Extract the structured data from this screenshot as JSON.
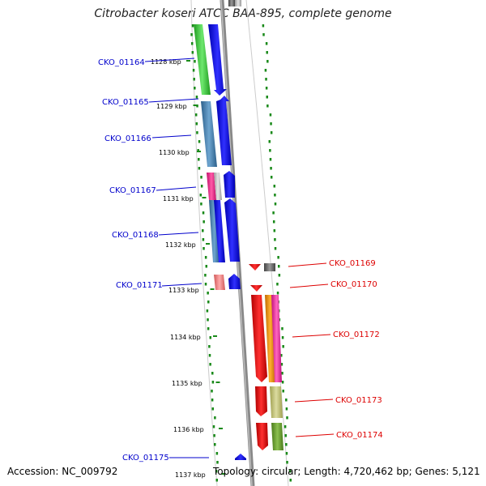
{
  "title": "Citrobacter koseri ATCC BAA-895, complete genome",
  "footer": {
    "accession": "Accession: NC_009792",
    "topology": "Topology: circular; Length: 4,720,462 bp; Genes: 5,121"
  },
  "kbp_ticks": [
    "1128 kbp",
    "1129 kbp",
    "1130 kbp",
    "1131 kbp",
    "1132 kbp",
    "1133 kbp",
    "1134 kbp",
    "1135 kbp",
    "1136 kbp",
    "1137 kbp"
  ],
  "genes_left": [
    {
      "id": "CKO_01164",
      "color": "#0000cc"
    },
    {
      "id": "CKO_01165",
      "color": "#0000cc"
    },
    {
      "id": "CKO_01166",
      "color": "#0000cc"
    },
    {
      "id": "CKO_01167",
      "color": "#0000cc"
    },
    {
      "id": "CKO_01168",
      "color": "#0000cc"
    },
    {
      "id": "CKO_01171",
      "color": "#0000cc"
    },
    {
      "id": "CKO_01175",
      "color": "#0000cc"
    }
  ],
  "genes_right": [
    {
      "id": "CKO_01169",
      "color": "#dd0000"
    },
    {
      "id": "CKO_01170",
      "color": "#dd0000"
    },
    {
      "id": "CKO_01172",
      "color": "#dd0000"
    },
    {
      "id": "CKO_01173",
      "color": "#dd0000"
    },
    {
      "id": "CKO_01174",
      "color": "#dd0000"
    }
  ],
  "colors": {
    "forward_strand": "#0000ff",
    "reverse_strand": "#ff0000",
    "backbone": "#888888",
    "gc_dots": "#1a8a1a"
  }
}
